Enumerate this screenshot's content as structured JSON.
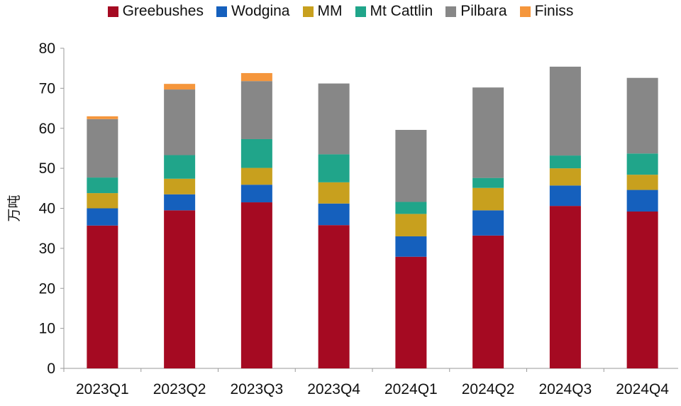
{
  "chart_data": {
    "type": "bar",
    "stacked": true,
    "categories": [
      "2023Q1",
      "2023Q2",
      "2023Q3",
      "2023Q4",
      "2024Q1",
      "2024Q2",
      "2024Q3",
      "2024Q4"
    ],
    "ylabel": "万吨",
    "ylim": [
      0,
      80
    ],
    "yticks": [
      0,
      10,
      20,
      30,
      40,
      50,
      60,
      70,
      80
    ],
    "legend_position": "top",
    "grid": false,
    "series": [
      {
        "name": "Greebushes",
        "color": "#A50A22",
        "values": [
          35.7,
          39.5,
          41.5,
          35.8,
          27.9,
          33.2,
          40.6,
          39.2
        ]
      },
      {
        "name": "Wodgina",
        "color": "#1560BD",
        "values": [
          4.3,
          4.0,
          4.4,
          5.4,
          5.1,
          6.3,
          5.1,
          5.4
        ]
      },
      {
        "name": "MM",
        "color": "#C8A01E",
        "values": [
          3.8,
          3.9,
          4.2,
          5.3,
          5.6,
          5.6,
          4.3,
          3.8
        ]
      },
      {
        "name": "Mt Cattlin",
        "color": "#20A58A",
        "values": [
          3.9,
          5.9,
          7.2,
          7.0,
          3.0,
          2.5,
          3.2,
          5.3
        ]
      },
      {
        "name": "Pilbara",
        "color": "#878787",
        "values": [
          14.6,
          16.4,
          14.5,
          17.7,
          18.0,
          22.6,
          22.2,
          18.9
        ]
      },
      {
        "name": "Finiss",
        "color": "#F5963C",
        "values": [
          0.7,
          1.4,
          2.0,
          0.0,
          0.0,
          0.0,
          0.0,
          0.0
        ]
      }
    ]
  }
}
